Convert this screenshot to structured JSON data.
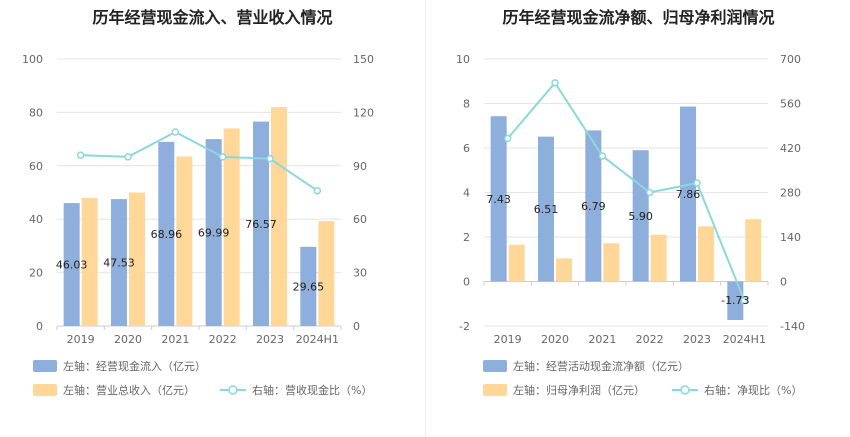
{
  "chart_data": [
    {
      "type": "bar",
      "title": "历年经营现金流入、营业收入情况",
      "categories": [
        "2019",
        "2020",
        "2021",
        "2022",
        "2023",
        "2024H1"
      ],
      "ylim_left": [
        0,
        100
      ],
      "yticks_left": [
        0,
        20,
        40,
        60,
        80,
        100
      ],
      "ylim_right": [
        0,
        150
      ],
      "yticks_right": [
        0,
        30,
        60,
        90,
        120,
        150
      ],
      "grid": true,
      "legend_position": "bottom",
      "series": [
        {
          "name": "左轴：经营现金流入（亿元）",
          "type": "bar",
          "axis": "left",
          "color": "#8eaedc",
          "values": [
            46.03,
            47.53,
            68.96,
            69.99,
            76.57,
            29.65
          ],
          "labels": [
            "46.03",
            "47.53",
            "68.96",
            "69.99",
            "76.57",
            "29.65"
          ]
        },
        {
          "name": "左轴：营业总收入（亿元）",
          "type": "bar",
          "axis": "left",
          "color": "#ffd899",
          "values": [
            48,
            50,
            63.5,
            74,
            82,
            39.3
          ]
        },
        {
          "name": "右轴：营收现金比（%）",
          "type": "line",
          "axis": "right",
          "color": "#8ad8de",
          "values": [
            96,
            95,
            109,
            95,
            94,
            76
          ]
        }
      ]
    },
    {
      "type": "bar",
      "title": "历年经营现金流净额、归母净利润情况",
      "categories": [
        "2019",
        "2020",
        "2021",
        "2022",
        "2023",
        "2024H1"
      ],
      "ylim_left": [
        -2,
        10
      ],
      "yticks_left": [
        -2,
        0,
        2,
        4,
        6,
        8,
        10
      ],
      "ylim_right": [
        -140,
        700
      ],
      "yticks_right": [
        -140,
        0,
        140,
        280,
        420,
        560,
        700
      ],
      "grid": true,
      "legend_position": "bottom",
      "series": [
        {
          "name": "左轴：经营活动现金流净额（亿元）",
          "type": "bar",
          "axis": "left",
          "color": "#8eaedc",
          "values": [
            7.43,
            6.51,
            6.79,
            5.9,
            7.86,
            -1.73
          ],
          "labels": [
            "7.43",
            "6.51",
            "6.79",
            "5.90",
            "7.86",
            "-1.73"
          ]
        },
        {
          "name": "左轴：归母净利润（亿元）",
          "type": "bar",
          "axis": "left",
          "color": "#ffd899",
          "values": [
            1.65,
            1.04,
            1.72,
            2.1,
            2.48,
            2.8
          ]
        },
        {
          "name": "右轴：净现比（%）",
          "type": "line",
          "axis": "right",
          "color": "#8ad8de",
          "values": [
            450,
            625,
            395,
            280,
            310,
            -60
          ]
        }
      ]
    }
  ]
}
